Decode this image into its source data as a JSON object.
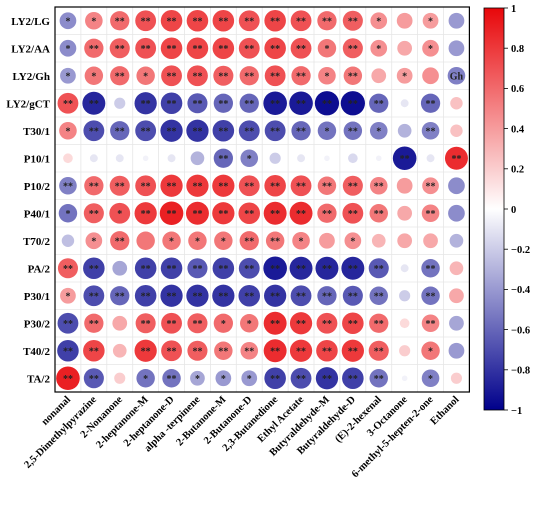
{
  "chart_data": {
    "type": "heatmap",
    "subtype": "correlation-circle-matrix",
    "rows": [
      "LY2/LG",
      "LY2/AA",
      "LY2/Gh",
      "LY2/gCT",
      "T30/1",
      "P10/1",
      "P10/2",
      "P40/1",
      "T70/2",
      "PA/2",
      "P30/1",
      "P30/2",
      "T40/2",
      "TA/2"
    ],
    "columns": [
      "nonanal",
      "2,5-Dimethylpyrazine",
      "2-Nonanone",
      "2-heptanone-M",
      "2-heptanone-D",
      "alpha -terpinene",
      "2-Butanone-M",
      "2-Butanone-D",
      "2,3-Butanedione",
      "Ethyl Acetate",
      "Butyraldehyde-M",
      "Butyraldehyde-D",
      "(E)-2-hexenal",
      "3-Octanone",
      "6-methyl-5-hepten-2-one",
      "Ethanol"
    ],
    "values": [
      [
        -0.45,
        0.5,
        0.6,
        0.7,
        0.75,
        0.75,
        0.75,
        0.7,
        0.75,
        0.7,
        0.6,
        0.65,
        0.45,
        0.4,
        0.4,
        -0.4
      ],
      [
        -0.45,
        0.6,
        0.65,
        0.7,
        0.75,
        0.75,
        0.75,
        0.7,
        0.75,
        0.7,
        0.55,
        0.65,
        0.45,
        0.35,
        0.45,
        -0.4
      ],
      [
        -0.4,
        0.55,
        0.6,
        0.55,
        0.7,
        0.7,
        0.65,
        0.6,
        0.7,
        0.6,
        0.5,
        0.55,
        0.35,
        0.4,
        0.45,
        -0.5
      ],
      [
        0.7,
        -0.85,
        -0.2,
        -0.8,
        -0.75,
        -0.65,
        -0.6,
        -0.6,
        -0.9,
        -0.9,
        -0.95,
        -0.95,
        -0.6,
        -0.1,
        -0.6,
        0.25
      ],
      [
        0.5,
        -0.7,
        -0.6,
        -0.7,
        -0.8,
        -0.8,
        -0.75,
        -0.7,
        -0.7,
        -0.6,
        -0.55,
        -0.55,
        -0.5,
        -0.3,
        -0.5,
        0.25
      ],
      [
        0.15,
        -0.1,
        -0.1,
        -0.05,
        -0.1,
        -0.3,
        -0.6,
        -0.5,
        -0.2,
        -0.1,
        -0.05,
        -0.15,
        -0.05,
        -0.9,
        -0.1,
        0.85
      ],
      [
        -0.5,
        0.6,
        0.65,
        0.7,
        0.8,
        0.8,
        0.8,
        0.7,
        0.75,
        0.7,
        0.55,
        0.65,
        0.5,
        0.4,
        0.45,
        -0.45
      ],
      [
        -0.55,
        0.65,
        0.7,
        0.8,
        0.9,
        0.85,
        0.8,
        0.75,
        0.85,
        0.85,
        0.6,
        0.7,
        0.55,
        0.35,
        0.5,
        -0.45
      ],
      [
        -0.25,
        0.45,
        0.6,
        0.55,
        0.55,
        0.55,
        0.55,
        0.6,
        0.55,
        0.5,
        0.4,
        0.45,
        0.3,
        0.35,
        0.35,
        -0.3
      ],
      [
        0.65,
        -0.75,
        -0.35,
        -0.75,
        -0.75,
        -0.65,
        -0.75,
        -0.7,
        -0.9,
        -0.85,
        -0.85,
        -0.85,
        -0.65,
        -0.1,
        -0.55,
        0.3
      ],
      [
        0.4,
        -0.7,
        -0.6,
        -0.75,
        -0.8,
        -0.8,
        -0.8,
        -0.75,
        -0.8,
        -0.7,
        -0.6,
        -0.65,
        -0.55,
        -0.2,
        -0.55,
        0.35
      ],
      [
        -0.7,
        0.6,
        0.35,
        0.65,
        0.7,
        0.65,
        0.6,
        0.55,
        0.85,
        0.8,
        0.7,
        0.75,
        0.6,
        0.15,
        0.5,
        -0.35
      ],
      [
        -0.75,
        0.75,
        0.3,
        0.8,
        0.7,
        0.65,
        0.55,
        0.5,
        0.85,
        0.8,
        0.75,
        0.8,
        0.65,
        0.2,
        0.55,
        -0.4
      ],
      [
        0.9,
        -0.65,
        0.2,
        -0.55,
        -0.55,
        -0.35,
        -0.4,
        -0.4,
        -0.75,
        -0.7,
        -0.8,
        -0.75,
        -0.55,
        -0.05,
        -0.5,
        0.2
      ]
    ],
    "significance": [
      [
        "*",
        "*",
        "**",
        "**",
        "**",
        "**",
        "**",
        "**",
        "**",
        "**",
        "**",
        "**",
        "*",
        "",
        "*",
        ""
      ],
      [
        "*",
        "**",
        "**",
        "**",
        "**",
        "**",
        "**",
        "**",
        "**",
        "**",
        "*",
        "**",
        "*",
        "",
        "*",
        ""
      ],
      [
        "*",
        "*",
        "**",
        "*",
        "**",
        "**",
        "**",
        "**",
        "**",
        "**",
        "*",
        "**",
        "",
        "*",
        "",
        "Gh"
      ],
      [
        "**",
        "**",
        "",
        "**",
        "**",
        "**",
        "**",
        "**",
        "**",
        "**",
        "**",
        "**",
        "**",
        "",
        "**",
        ""
      ],
      [
        "*",
        "**",
        "**",
        "**",
        "**",
        "**",
        "**",
        "**",
        "**",
        "**",
        "*",
        "**",
        "*",
        "",
        "**",
        ""
      ],
      [
        "",
        "",
        "",
        "",
        "",
        "",
        "**",
        "*",
        "",
        "",
        "",
        "",
        "",
        "**",
        "",
        "**"
      ],
      [
        "**",
        "**",
        "**",
        "**",
        "**",
        "**",
        "**",
        "**",
        "**",
        "**",
        "**",
        "**",
        "**",
        "",
        "**",
        ""
      ],
      [
        "*",
        "**",
        "*",
        "**",
        "**",
        "**",
        "**",
        "**",
        "**",
        "**",
        "**",
        "**",
        "**",
        "",
        "**",
        ""
      ],
      [
        "",
        "*",
        "**",
        "",
        "*",
        "*",
        "*",
        "**",
        "**",
        "*",
        "",
        "*",
        "",
        "",
        "",
        ""
      ],
      [
        "**",
        "**",
        "",
        "**",
        "**",
        "**",
        "**",
        "**",
        "**",
        "**",
        "**",
        "**",
        "**",
        "",
        "**",
        ""
      ],
      [
        "*",
        "**",
        "**",
        "**",
        "**",
        "**",
        "**",
        "**",
        "**",
        "**",
        "**",
        "**",
        "**",
        "",
        "**",
        ""
      ],
      [
        "**",
        "**",
        "",
        "**",
        "**",
        "**",
        "*",
        "*",
        "**",
        "**",
        "**",
        "**",
        "**",
        "",
        "**",
        ""
      ],
      [
        "**",
        "**",
        "",
        "**",
        "**",
        "**",
        "**",
        "**",
        "**",
        "**",
        "**",
        "**",
        "**",
        "",
        "*",
        ""
      ],
      [
        "**",
        "**",
        "",
        "*",
        "**",
        "*",
        "*",
        "*",
        "**",
        "**",
        "**",
        "**",
        "**",
        "",
        "*",
        ""
      ]
    ],
    "colorbar": {
      "min": -1,
      "max": 1,
      "tick_labels": [
        "1",
        "0.8",
        "0.6",
        "0.4",
        "0.2",
        "0",
        "−0.2",
        "−0.4",
        "−0.6",
        "−0.8",
        "−1"
      ],
      "colors": {
        "negative": "#00008b",
        "neutral": "#ffffff",
        "positive": "#e8070a"
      }
    },
    "title": "",
    "xlabel": "",
    "ylabel": ""
  }
}
